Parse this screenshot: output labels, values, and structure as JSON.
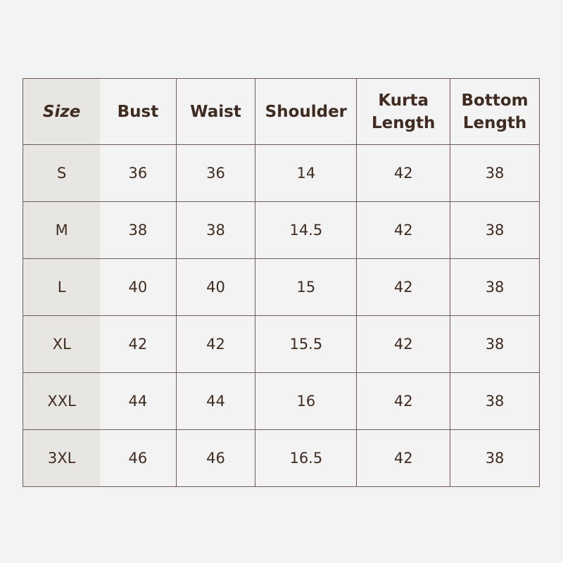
{
  "headers": [
    "Size",
    "Bust",
    "Waist",
    "Shoulder",
    "Kurta Length",
    "Bottom Length"
  ],
  "rows": [
    [
      "S",
      "36",
      "36",
      "14",
      "42",
      "38"
    ],
    [
      "M",
      "38",
      "38",
      "14.5",
      "42",
      "38"
    ],
    [
      "L",
      "40",
      "40",
      "15",
      "42",
      "38"
    ],
    [
      "XL",
      "42",
      "42",
      "15.5",
      "42",
      "38"
    ],
    [
      "XXL",
      "44",
      "44",
      "16",
      "42",
      "38"
    ],
    [
      "3XL",
      "46",
      "46",
      "16.5",
      "42",
      "38"
    ]
  ],
  "colors": {
    "text": "#3f2b20",
    "border": "#6b5b52",
    "size_column": "#e8e6e2",
    "background": "#f3f3f3"
  }
}
